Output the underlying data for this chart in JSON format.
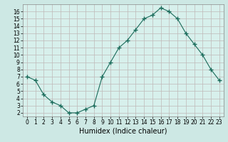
{
  "x": [
    0,
    1,
    2,
    3,
    4,
    5,
    6,
    7,
    8,
    9,
    10,
    11,
    12,
    13,
    14,
    15,
    16,
    17,
    18,
    19,
    20,
    21,
    22,
    23
  ],
  "y": [
    7.0,
    6.5,
    4.5,
    3.5,
    3.0,
    2.0,
    2.0,
    2.5,
    3.0,
    7.0,
    9.0,
    11.0,
    12.0,
    13.5,
    15.0,
    15.5,
    16.5,
    16.0,
    15.0,
    13.0,
    11.5,
    10.0,
    8.0,
    6.5
  ],
  "line_color": "#1a6b5a",
  "marker": "+",
  "marker_size": 4,
  "xlabel": "Humidex (Indice chaleur)",
  "xlim": [
    -0.5,
    23.5
  ],
  "ylim": [
    1.5,
    17
  ],
  "yticks": [
    2,
    3,
    4,
    5,
    6,
    7,
    8,
    9,
    10,
    11,
    12,
    13,
    14,
    15,
    16
  ],
  "xticks": [
    0,
    1,
    2,
    3,
    4,
    5,
    6,
    7,
    8,
    9,
    10,
    11,
    12,
    13,
    14,
    15,
    16,
    17,
    18,
    19,
    20,
    21,
    22,
    23
  ],
  "bg_color": "#d7f0ec",
  "grid_color": "#c0b8b8",
  "fig_bg": "#cde8e4",
  "tick_fontsize": 5.5,
  "xlabel_fontsize": 7
}
